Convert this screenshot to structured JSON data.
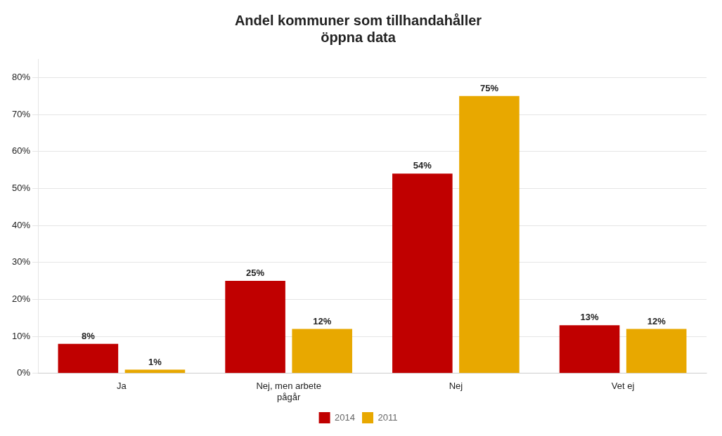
{
  "chart_data": {
    "type": "bar",
    "title": "Andel kommuner som tillhandahåller\nöppna data",
    "categories": [
      "Ja",
      "Nej, men arbete\npågår",
      "Nej",
      "Vet ej"
    ],
    "series": [
      {
        "name": "2014",
        "color": "#C00000",
        "values": [
          8,
          25,
          54,
          13
        ],
        "value_labels": [
          "8%",
          "25%",
          "54%",
          "13%"
        ]
      },
      {
        "name": "2011",
        "color": "#E8A800",
        "values": [
          1,
          12,
          75,
          12
        ],
        "value_labels": [
          "1%",
          "12%",
          "75%",
          "12%"
        ]
      }
    ],
    "ylim": [
      0,
      85
    ],
    "yticks": [
      {
        "value": 0,
        "label": "0%"
      },
      {
        "value": 10,
        "label": "10%"
      },
      {
        "value": 20,
        "label": "20%"
      },
      {
        "value": 30,
        "label": "30%"
      },
      {
        "value": 40,
        "label": "40%"
      },
      {
        "value": 50,
        "label": "50%"
      },
      {
        "value": 60,
        "label": "60%"
      },
      {
        "value": 70,
        "label": "70%"
      },
      {
        "value": 80,
        "label": "80%"
      }
    ],
    "grid": true,
    "legend": "bottom",
    "data_labels": true
  }
}
